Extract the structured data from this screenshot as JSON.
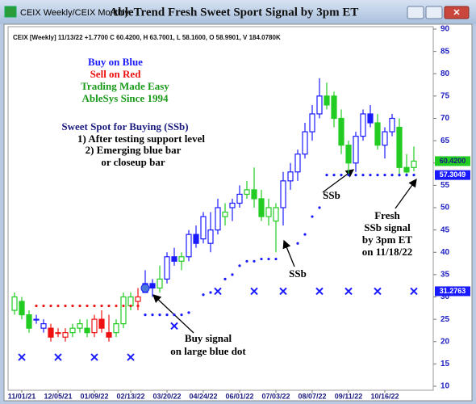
{
  "window_title": "CEIX Weekly/CEIX Monthly",
  "chart_data": {
    "type": "candlestick",
    "title": "AbleTrend Fresh Sweet Sport Signal by 3pm ET",
    "header": "CEIX [Weekly] 11/13/22 +1.7700 C 60.4200, H 63.7001, L 58.1600, O 58.9901, V 184.0780K",
    "categories": [
      null,
      "11/01/21",
      null,
      null,
      null,
      null,
      "12/05/21",
      null,
      null,
      null,
      null,
      "01/09/22",
      null,
      null,
      null,
      null,
      "02/13/22",
      null,
      null,
      null,
      null,
      "03/20/22",
      null,
      null,
      null,
      null,
      "04/24/22",
      null,
      null,
      null,
      null,
      "06/01/22",
      null,
      null,
      null,
      null,
      "07/03/22",
      null,
      null,
      null,
      null,
      "08/07/22",
      null,
      null,
      null,
      null,
      "09/11/22",
      null,
      null,
      null,
      null,
      "10/16/22",
      null,
      null,
      null,
      null
    ],
    "open": [
      27,
      29,
      26,
      25,
      23,
      23,
      22,
      21,
      22,
      23,
      23,
      22,
      25,
      22,
      22,
      24,
      28,
      29,
      31,
      33,
      32,
      34,
      39,
      38,
      39,
      44,
      43,
      42,
      45,
      48,
      50,
      51,
      53,
      54,
      52,
      48,
      47,
      50,
      56,
      58,
      62,
      67,
      71,
      75,
      75,
      70,
      64,
      60,
      66,
      71,
      69,
      64,
      67,
      68,
      59,
      58.99
    ],
    "high": [
      31,
      30,
      27,
      26,
      25,
      24,
      23,
      23,
      24,
      25,
      25,
      26,
      27,
      26,
      25,
      31,
      31,
      32,
      36,
      34,
      37,
      40,
      41,
      40,
      45,
      46,
      49,
      49,
      52,
      51,
      52,
      55,
      56,
      59,
      54,
      52,
      51,
      58,
      60,
      63,
      69,
      73,
      79,
      78,
      76,
      72,
      65,
      67,
      72,
      73,
      71,
      68,
      71,
      70,
      62,
      63.7
    ],
    "low": [
      26,
      25,
      22,
      24,
      22,
      20,
      21,
      20,
      21,
      22,
      21,
      21,
      22,
      20,
      21,
      23,
      27,
      27,
      31,
      30,
      31,
      33,
      37,
      36,
      38,
      41,
      42,
      40,
      44,
      46,
      47,
      50,
      52,
      50,
      47,
      46,
      40,
      46,
      54,
      56,
      61,
      65,
      70,
      72,
      68,
      62,
      57,
      58,
      65,
      68,
      63,
      61,
      66,
      57,
      57,
      58.16
    ],
    "close": [
      30,
      26,
      23,
      25,
      24,
      21,
      22,
      22,
      23,
      24,
      22,
      25,
      23,
      21,
      24,
      30,
      30,
      30,
      33,
      32,
      34,
      39,
      38,
      39,
      44,
      42,
      48,
      45,
      50,
      49,
      51,
      53,
      54,
      52,
      48,
      50,
      50,
      56,
      58,
      62,
      67,
      71,
      75,
      73,
      70,
      64,
      60,
      66,
      71,
      69,
      64,
      67,
      70,
      59,
      58,
      60.42
    ],
    "bar_colors": [
      "#22cc22",
      "#22cc22",
      "#22cc22",
      "#1a1aff",
      "#1a1aff",
      "#ee1111",
      "#ee1111",
      "#ee1111",
      "#22cc22",
      "#22cc22",
      "#22cc22",
      "#ee1111",
      "#ee1111",
      "#ee1111",
      "#22cc22",
      "#22cc22",
      "#22cc22",
      "#ee1111",
      "#1a1aff",
      "#1a1aff",
      "#22cc22",
      "#1a1aff",
      "#1a1aff",
      "#22cc22",
      "#1a1aff",
      "#1a1aff",
      "#1a1aff",
      "#1a1aff",
      "#1a1aff",
      "#22cc22",
      "#1a1aff",
      "#1a1aff",
      "#22cc22",
      "#22cc22",
      "#22cc22",
      "#22cc22",
      "#22cc22",
      "#1a1aff",
      "#1a1aff",
      "#1a1aff",
      "#1a1aff",
      "#1a1aff",
      "#1a1aff",
      "#22cc22",
      "#22cc22",
      "#22cc22",
      "#22cc22",
      "#1a1aff",
      "#1a1aff",
      "#1a1aff",
      "#22cc22",
      "#1a1aff",
      "#1a1aff",
      "#22cc22",
      "#22cc22",
      "#22cc22"
    ],
    "series": [
      {
        "name": "sell-dots",
        "color": "#ee1111",
        "values": [
          null,
          null,
          null,
          28,
          28,
          28,
          28,
          28,
          28,
          28,
          28,
          28,
          28,
          28,
          28,
          28,
          28,
          28,
          null,
          null,
          null,
          null,
          null,
          null,
          null,
          null,
          null,
          null,
          null,
          null,
          null,
          null,
          null,
          null,
          null,
          null,
          null,
          null,
          null,
          null,
          null,
          null,
          null,
          null,
          null,
          null,
          null,
          null,
          null,
          null,
          null,
          null,
          null,
          null,
          null,
          null
        ]
      },
      {
        "name": "buy-dots",
        "color": "#1a1aff",
        "values": [
          null,
          null,
          null,
          null,
          null,
          null,
          null,
          null,
          null,
          null,
          null,
          null,
          null,
          null,
          null,
          null,
          null,
          null,
          26,
          26,
          26,
          26,
          26,
          26,
          26.5,
          null,
          30.5,
          31,
          null,
          34,
          35,
          37,
          38,
          38,
          38.5,
          38.5,
          38.5,
          null,
          null,
          42,
          44,
          48,
          50,
          57.3049,
          57.3049,
          57.3049,
          57.3049,
          57.3049,
          57.3049,
          57.3049,
          57.3049,
          57.3049,
          57.3049,
          57.3049,
          57.3049,
          57.3049
        ]
      },
      {
        "name": "x-markers",
        "color": "#1a1aff",
        "values": [
          null,
          16.5,
          null,
          null,
          null,
          null,
          16.5,
          null,
          null,
          null,
          null,
          16.5,
          null,
          null,
          null,
          null,
          16.5,
          null,
          null,
          null,
          null,
          null,
          23.5,
          null,
          null,
          null,
          null,
          null,
          31.2763,
          null,
          null,
          null,
          null,
          31.2763,
          null,
          null,
          null,
          31.2763,
          null,
          null,
          null,
          null,
          31.2763,
          null,
          null,
          null,
          31.2763,
          null,
          null,
          null,
          31.2763,
          null,
          null,
          null,
          null,
          31.2763
        ]
      }
    ],
    "price_labels": [
      {
        "value": 60.42,
        "label": "60.4200",
        "color": "#22cc22",
        "text_color": "#1a1a80"
      },
      {
        "value": 57.3049,
        "label": "57.3049",
        "color": "#1a1aff",
        "text_color": "#ffffff"
      },
      {
        "value": 31.2763,
        "label": "31.2763",
        "color": "#1a1aff",
        "text_color": "#ffffff"
      }
    ],
    "ylim": [
      10,
      90
    ],
    "yticks": [
      10,
      15,
      20,
      25,
      30,
      35,
      40,
      45,
      50,
      55,
      60,
      65,
      70,
      75,
      80,
      85,
      90
    ],
    "annotations": [
      "Buy on Blue",
      "Sell on Red",
      "Trading Made Easy",
      "AbleSys Since 1994",
      "Sweet Spot for Buying (SSb)",
      "1) After testing support level",
      "2) Emerging blue bar",
      "or closeup bar",
      "SSb",
      "SSb",
      "Fresh",
      "SSb signal",
      "by 3pm ET",
      "on 11/18/22",
      "Buy signal",
      "on large blue dot"
    ]
  }
}
